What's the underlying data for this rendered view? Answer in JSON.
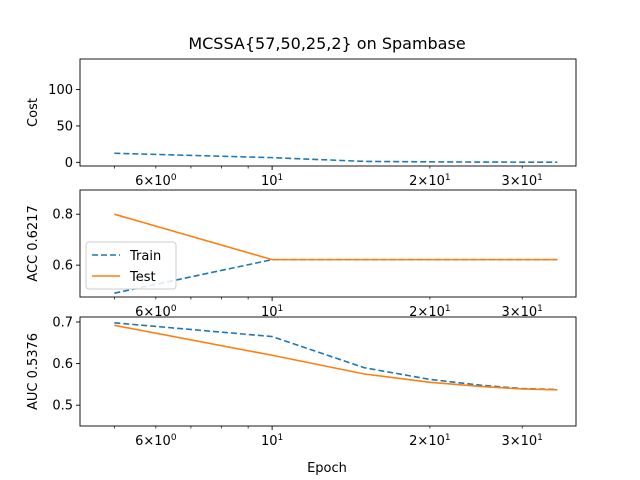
{
  "chart_data": {
    "type": "line",
    "title": "MCSSA{57,50,25,2} on Spambase",
    "xlabel": "Epoch",
    "x_scale": "log",
    "xlim": [
      4.3,
      38
    ],
    "x": [
      5,
      10,
      15,
      20,
      25,
      30,
      35
    ],
    "x_major_ticks": [
      {
        "value": 10,
        "label": "10^1"
      }
    ],
    "x_minor_ticks": [
      {
        "value": 5,
        "label": ""
      },
      {
        "value": 6,
        "label": "6×10^0"
      },
      {
        "value": 7,
        "label": ""
      },
      {
        "value": 8,
        "label": ""
      },
      {
        "value": 9,
        "label": ""
      },
      {
        "value": 20,
        "label": "2×10^1"
      },
      {
        "value": 30,
        "label": "3×10^1"
      }
    ],
    "series_styles": [
      {
        "name": "Train",
        "color": "#1f77b4",
        "dash": "dashed"
      },
      {
        "name": "Test",
        "color": "#ff7f0e",
        "dash": "solid"
      }
    ],
    "panels": [
      {
        "ylabel": "Cost",
        "ylim": [
          -5,
          142
        ],
        "yticks": [
          0,
          50,
          100
        ],
        "legend": "",
        "series": [
          {
            "values": [
              12.5,
              6.5,
              1.3,
              0.7,
              0.4,
              0.3,
              0.3
            ],
            "style": 0
          }
        ]
      },
      {
        "ylabel": "ACC 0.6217",
        "ylim": [
          0.475,
          0.895
        ],
        "yticks": [
          0.6,
          0.8
        ],
        "legend": "center-left",
        "series": [
          {
            "values": [
              0.49,
              0.6217,
              0.6217,
              0.6217,
              0.6217,
              0.6217,
              0.6217
            ],
            "style": 0
          },
          {
            "values": [
              0.8,
              0.6217,
              0.6217,
              0.6217,
              0.6217,
              0.6217,
              0.6217
            ],
            "style": 1
          }
        ]
      },
      {
        "ylabel": "AUC 0.5376",
        "ylim": [
          0.45,
          0.712
        ],
        "yticks": [
          0.5,
          0.6,
          0.7
        ],
        "legend": "",
        "series": [
          {
            "values": [
              0.698,
              0.665,
              0.59,
              0.562,
              0.548,
              0.54,
              0.5376
            ],
            "style": 0
          },
          {
            "values": [
              0.692,
              0.62,
              0.575,
              0.555,
              0.545,
              0.539,
              0.537
            ],
            "style": 1
          }
        ]
      }
    ]
  }
}
